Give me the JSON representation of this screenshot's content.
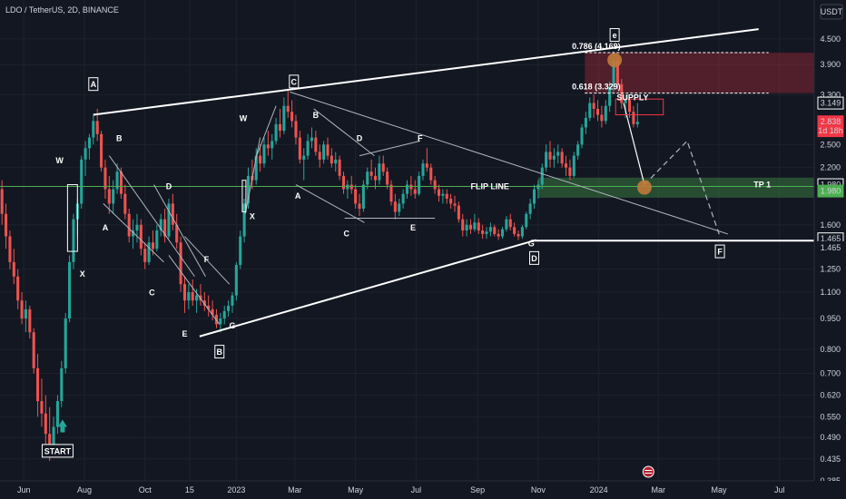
{
  "header": {
    "title": "LDO / TetherUS, 2D, BINANCE",
    "currency": "USDT"
  },
  "chart_data": {
    "type": "candlestick",
    "symbol": "LDO / TetherUS",
    "interval": "2D",
    "exchange": "BINANCE",
    "y_scale": "log",
    "ylim": [
      0.385,
      5.0
    ],
    "y_ticks": [
      4.5,
      3.9,
      3.3,
      2.5,
      2.2,
      1.6,
      1.25,
      1.1,
      0.95,
      0.8,
      0.7,
      0.62,
      0.55,
      0.49,
      0.435,
      0.385
    ],
    "y_tick_labels": [
      "4.500",
      "3.900",
      "3.300",
      "2.500",
      "2.200",
      "1.600",
      "1.250",
      "1.100",
      "0.950",
      "0.800",
      "0.700",
      "0.620",
      "0.550",
      "0.490",
      "0.435",
      "0.385"
    ],
    "x_tick_labels": [
      "Jun",
      "Aug",
      "Oct",
      "15",
      "2023",
      "Mar",
      "May",
      "Jul",
      "Sep",
      "Nov",
      "2024",
      "Mar",
      "May",
      "Jul"
    ],
    "x_tick_dates": [
      "2022-06-01",
      "2022-08-01",
      "2022-10-01",
      "2022-11-15",
      "2023-01-01",
      "2023-03-01",
      "2023-05-01",
      "2023-07-01",
      "2023-09-01",
      "2023-11-01",
      "2024-01-01",
      "2024-03-01",
      "2024-05-01",
      "2024-07-01"
    ],
    "date_range": [
      "2022-05-08",
      "2024-08-05"
    ],
    "price_labels": [
      {
        "text": "3.149",
        "price": 3.149,
        "style": "outline"
      },
      {
        "text": "2.838",
        "price": 2.838,
        "style": "red"
      },
      {
        "text": "1d 18h",
        "price": 2.7,
        "style": "red"
      },
      {
        "text": "1.980",
        "price": 2.0,
        "style": "outline"
      },
      {
        "text": "1.980",
        "price": 1.93,
        "style": "green"
      },
      {
        "text": "1.465",
        "price": 1.48,
        "style": "outline"
      },
      {
        "text": "1.465",
        "price": 1.41,
        "style": "plain"
      }
    ],
    "fib_levels": [
      {
        "label": "0.786 (4.169)",
        "price": 4.169
      },
      {
        "label": "0.618 (3.329)",
        "price": 3.329
      }
    ],
    "supply_zone": {
      "label": "SUPPLY",
      "top": 4.169,
      "bottom": 3.329
    },
    "flip_line": {
      "label": "FLIP LINE",
      "price": 1.98
    },
    "tp_zone": {
      "label": "TP 1",
      "top": 2.08,
      "bottom": 1.86
    },
    "target_line": {
      "price": 1.465
    },
    "wave_labels_boxed": [
      "A",
      "B",
      "C",
      "D",
      "e",
      "F",
      "START"
    ],
    "wave_labels_plain": [
      "W",
      "X",
      "B",
      "A",
      "C",
      "D",
      "E",
      "F",
      "G",
      "W",
      "X",
      "A",
      "B",
      "C",
      "D",
      "E",
      "F",
      "G"
    ],
    "candles": [
      [
        "2022-05-10",
        1.95,
        2.05,
        1.6,
        1.7
      ],
      [
        "2022-05-14",
        1.7,
        1.8,
        1.4,
        1.5
      ],
      [
        "2022-05-18",
        1.5,
        1.55,
        1.25,
        1.3
      ],
      [
        "2022-05-22",
        1.3,
        1.4,
        1.15,
        1.2
      ],
      [
        "2022-05-26",
        1.2,
        1.25,
        1.0,
        1.05
      ],
      [
        "2022-05-30",
        1.05,
        1.1,
        0.92,
        0.95
      ],
      [
        "2022-06-03",
        0.95,
        1.05,
        0.88,
        1.0
      ],
      [
        "2022-06-07",
        1.0,
        1.02,
        0.85,
        0.88
      ],
      [
        "2022-06-11",
        0.88,
        0.9,
        0.7,
        0.72
      ],
      [
        "2022-06-15",
        0.72,
        0.78,
        0.55,
        0.6
      ],
      [
        "2022-06-19",
        0.6,
        0.68,
        0.52,
        0.56
      ],
      [
        "2022-06-23",
        0.56,
        0.62,
        0.47,
        0.5
      ],
      [
        "2022-06-27",
        0.5,
        0.58,
        0.43,
        0.46
      ],
      [
        "2022-07-01",
        0.46,
        0.55,
        0.44,
        0.52
      ],
      [
        "2022-07-05",
        0.52,
        0.62,
        0.5,
        0.6
      ],
      [
        "2022-07-09",
        0.6,
        0.75,
        0.58,
        0.72
      ],
      [
        "2022-07-13",
        0.72,
        0.98,
        0.7,
        0.95
      ],
      [
        "2022-07-17",
        0.95,
        1.35,
        0.93,
        1.3
      ],
      [
        "2022-07-21",
        1.3,
        1.7,
        1.25,
        1.65
      ],
      [
        "2022-07-25",
        1.65,
        1.85,
        1.5,
        1.8
      ],
      [
        "2022-07-29",
        1.8,
        2.35,
        1.75,
        2.3
      ],
      [
        "2022-08-02",
        2.3,
        2.55,
        2.1,
        2.45
      ],
      [
        "2022-08-06",
        2.45,
        2.65,
        2.3,
        2.6
      ],
      [
        "2022-08-10",
        2.6,
        2.95,
        2.5,
        2.85
      ],
      [
        "2022-08-14",
        2.85,
        3.05,
        2.55,
        2.65
      ],
      [
        "2022-08-18",
        2.65,
        2.7,
        2.15,
        2.2
      ],
      [
        "2022-08-22",
        2.2,
        2.3,
        1.85,
        1.95
      ],
      [
        "2022-08-26",
        1.95,
        2.1,
        1.7,
        1.8
      ],
      [
        "2022-08-30",
        1.8,
        2.05,
        1.7,
        1.95
      ],
      [
        "2022-09-03",
        1.95,
        2.25,
        1.9,
        2.15
      ],
      [
        "2022-09-07",
        2.15,
        2.2,
        1.85,
        1.9
      ],
      [
        "2022-09-11",
        1.9,
        2.0,
        1.65,
        1.7
      ],
      [
        "2022-09-15",
        1.7,
        1.75,
        1.45,
        1.5
      ],
      [
        "2022-09-19",
        1.5,
        1.65,
        1.4,
        1.55
      ],
      [
        "2022-09-23",
        1.55,
        1.7,
        1.45,
        1.6
      ],
      [
        "2022-09-27",
        1.6,
        1.65,
        1.35,
        1.4
      ],
      [
        "2022-10-01",
        1.4,
        1.45,
        1.25,
        1.3
      ],
      [
        "2022-10-05",
        1.3,
        1.5,
        1.28,
        1.45
      ],
      [
        "2022-10-09",
        1.45,
        1.55,
        1.35,
        1.4
      ],
      [
        "2022-10-13",
        1.4,
        1.6,
        1.38,
        1.55
      ],
      [
        "2022-10-17",
        1.55,
        1.7,
        1.5,
        1.65
      ],
      [
        "2022-10-21",
        1.65,
        1.75,
        1.45,
        1.5
      ],
      [
        "2022-10-25",
        1.5,
        1.85,
        1.48,
        1.8
      ],
      [
        "2022-10-29",
        1.8,
        1.9,
        1.55,
        1.6
      ],
      [
        "2022-11-02",
        1.6,
        1.7,
        1.4,
        1.45
      ],
      [
        "2022-11-06",
        1.45,
        1.5,
        1.1,
        1.15
      ],
      [
        "2022-11-10",
        1.15,
        1.2,
        0.98,
        1.05
      ],
      [
        "2022-11-14",
        1.05,
        1.15,
        1.0,
        1.1
      ],
      [
        "2022-11-18",
        1.1,
        1.18,
        1.02,
        1.05
      ],
      [
        "2022-11-22",
        1.05,
        1.12,
        0.98,
        1.08
      ],
      [
        "2022-11-26",
        1.08,
        1.15,
        1.02,
        1.05
      ],
      [
        "2022-11-30",
        1.05,
        1.1,
        0.99,
        1.02
      ],
      [
        "2022-12-04",
        1.02,
        1.08,
        0.96,
        1.0
      ],
      [
        "2022-12-08",
        1.0,
        1.05,
        0.94,
        0.97
      ],
      [
        "2022-12-12",
        0.97,
        1.0,
        0.9,
        0.92
      ],
      [
        "2022-12-16",
        0.92,
        0.98,
        0.88,
        0.95
      ],
      [
        "2022-12-20",
        0.95,
        1.02,
        0.92,
        0.99
      ],
      [
        "2022-12-24",
        0.99,
        1.05,
        0.96,
        1.02
      ],
      [
        "2022-12-28",
        1.02,
        1.1,
        0.98,
        1.08
      ],
      [
        "2023-01-01",
        1.08,
        1.3,
        1.05,
        1.28
      ],
      [
        "2023-01-05",
        1.28,
        1.55,
        1.25,
        1.5
      ],
      [
        "2023-01-09",
        1.5,
        1.85,
        1.45,
        1.8
      ],
      [
        "2023-01-13",
        1.8,
        2.2,
        1.75,
        2.1
      ],
      [
        "2023-01-17",
        2.1,
        2.3,
        1.95,
        2.05
      ],
      [
        "2023-01-21",
        2.05,
        2.45,
        2.0,
        2.35
      ],
      [
        "2023-01-25",
        2.35,
        2.5,
        2.15,
        2.25
      ],
      [
        "2023-01-29",
        2.25,
        2.6,
        2.2,
        2.5
      ],
      [
        "2023-02-02",
        2.5,
        2.7,
        2.35,
        2.45
      ],
      [
        "2023-02-06",
        2.45,
        2.65,
        2.3,
        2.55
      ],
      [
        "2023-02-10",
        2.55,
        2.9,
        2.5,
        2.8
      ],
      [
        "2023-02-14",
        2.8,
        3.05,
        2.6,
        2.7
      ],
      [
        "2023-02-18",
        2.7,
        3.25,
        2.65,
        3.1
      ],
      [
        "2023-02-22",
        3.1,
        3.4,
        2.9,
        3.0
      ],
      [
        "2023-02-26",
        3.0,
        3.2,
        2.75,
        2.85
      ],
      [
        "2023-03-02",
        2.85,
        2.95,
        2.5,
        2.6
      ],
      [
        "2023-03-06",
        2.6,
        2.7,
        2.25,
        2.3
      ],
      [
        "2023-03-10",
        2.3,
        2.45,
        2.05,
        2.35
      ],
      [
        "2023-03-14",
        2.35,
        2.65,
        2.3,
        2.55
      ],
      [
        "2023-03-18",
        2.55,
        2.75,
        2.45,
        2.6
      ],
      [
        "2023-03-22",
        2.6,
        2.7,
        2.35,
        2.4
      ],
      [
        "2023-03-26",
        2.4,
        2.5,
        2.2,
        2.3
      ],
      [
        "2023-03-30",
        2.3,
        2.55,
        2.25,
        2.5
      ],
      [
        "2023-04-03",
        2.5,
        2.6,
        2.3,
        2.35
      ],
      [
        "2023-04-07",
        2.35,
        2.45,
        2.2,
        2.25
      ],
      [
        "2023-04-11",
        2.25,
        2.4,
        2.15,
        2.3
      ],
      [
        "2023-04-15",
        2.3,
        2.35,
        2.05,
        2.1
      ],
      [
        "2023-04-19",
        2.1,
        2.15,
        1.9,
        1.95
      ],
      [
        "2023-04-23",
        1.95,
        2.05,
        1.85,
        2.0
      ],
      [
        "2023-04-27",
        2.0,
        2.1,
        1.9,
        1.95
      ],
      [
        "2023-05-01",
        1.95,
        2.0,
        1.75,
        1.8
      ],
      [
        "2023-05-05",
        1.8,
        1.9,
        1.68,
        1.75
      ],
      [
        "2023-05-09",
        1.75,
        2.05,
        1.72,
        2.0
      ],
      [
        "2023-05-13",
        2.0,
        2.2,
        1.95,
        2.15
      ],
      [
        "2023-05-17",
        2.15,
        2.3,
        2.05,
        2.1
      ],
      [
        "2023-05-21",
        2.1,
        2.2,
        1.95,
        2.05
      ],
      [
        "2023-05-25",
        2.05,
        2.35,
        2.0,
        2.25
      ],
      [
        "2023-05-29",
        2.25,
        2.35,
        2.1,
        2.15
      ],
      [
        "2023-06-02",
        2.15,
        2.2,
        1.95,
        2.0
      ],
      [
        "2023-06-06",
        2.0,
        2.05,
        1.78,
        1.82
      ],
      [
        "2023-06-10",
        1.82,
        1.9,
        1.65,
        1.72
      ],
      [
        "2023-06-14",
        1.72,
        1.85,
        1.68,
        1.8
      ],
      [
        "2023-06-18",
        1.8,
        1.95,
        1.75,
        1.9
      ],
      [
        "2023-06-22",
        1.9,
        2.05,
        1.85,
        2.0
      ],
      [
        "2023-06-26",
        2.0,
        2.1,
        1.88,
        1.95
      ],
      [
        "2023-06-30",
        1.95,
        2.05,
        1.85,
        1.9
      ],
      [
        "2023-07-04",
        1.9,
        2.15,
        1.88,
        2.1
      ],
      [
        "2023-07-08",
        2.1,
        2.3,
        2.05,
        2.25
      ],
      [
        "2023-07-12",
        2.25,
        2.45,
        2.15,
        2.2
      ],
      [
        "2023-07-16",
        2.2,
        2.25,
        2.0,
        2.05
      ],
      [
        "2023-07-20",
        2.05,
        2.1,
        1.9,
        1.95
      ],
      [
        "2023-07-24",
        1.95,
        2.0,
        1.82,
        1.88
      ],
      [
        "2023-07-28",
        1.88,
        1.95,
        1.8,
        1.9
      ],
      [
        "2023-08-01",
        1.9,
        1.95,
        1.8,
        1.85
      ],
      [
        "2023-08-05",
        1.85,
        1.9,
        1.75,
        1.8
      ],
      [
        "2023-08-09",
        1.8,
        1.88,
        1.72,
        1.78
      ],
      [
        "2023-08-13",
        1.78,
        1.82,
        1.62,
        1.65
      ],
      [
        "2023-08-17",
        1.65,
        1.7,
        1.5,
        1.55
      ],
      [
        "2023-08-21",
        1.55,
        1.65,
        1.5,
        1.6
      ],
      [
        "2023-08-25",
        1.6,
        1.65,
        1.52,
        1.56
      ],
      [
        "2023-08-29",
        1.56,
        1.7,
        1.54,
        1.62
      ],
      [
        "2023-09-02",
        1.62,
        1.66,
        1.52,
        1.55
      ],
      [
        "2023-09-06",
        1.55,
        1.6,
        1.48,
        1.52
      ],
      [
        "2023-09-10",
        1.52,
        1.58,
        1.48,
        1.54
      ],
      [
        "2023-09-14",
        1.54,
        1.62,
        1.5,
        1.58
      ],
      [
        "2023-09-18",
        1.58,
        1.6,
        1.5,
        1.52
      ],
      [
        "2023-09-22",
        1.52,
        1.56,
        1.47,
        1.5
      ],
      [
        "2023-09-26",
        1.5,
        1.58,
        1.48,
        1.56
      ],
      [
        "2023-09-30",
        1.56,
        1.68,
        1.54,
        1.65
      ],
      [
        "2023-10-04",
        1.65,
        1.7,
        1.55,
        1.58
      ],
      [
        "2023-10-08",
        1.58,
        1.62,
        1.5,
        1.52
      ],
      [
        "2023-10-12",
        1.52,
        1.55,
        1.47,
        1.5
      ],
      [
        "2023-10-16",
        1.5,
        1.6,
        1.48,
        1.58
      ],
      [
        "2023-10-20",
        1.58,
        1.72,
        1.56,
        1.7
      ],
      [
        "2023-10-24",
        1.7,
        1.85,
        1.65,
        1.8
      ],
      [
        "2023-10-28",
        1.8,
        2.0,
        1.75,
        1.95
      ],
      [
        "2023-11-01",
        1.95,
        2.05,
        1.85,
        2.0
      ],
      [
        "2023-11-05",
        2.0,
        2.25,
        1.95,
        2.2
      ],
      [
        "2023-11-09",
        2.2,
        2.5,
        2.15,
        2.4
      ],
      [
        "2023-11-13",
        2.4,
        2.55,
        2.2,
        2.3
      ],
      [
        "2023-11-17",
        2.3,
        2.45,
        2.2,
        2.35
      ],
      [
        "2023-11-21",
        2.35,
        2.5,
        2.25,
        2.4
      ],
      [
        "2023-11-25",
        2.4,
        2.45,
        2.2,
        2.25
      ],
      [
        "2023-11-29",
        2.25,
        2.35,
        2.1,
        2.2
      ],
      [
        "2023-12-03",
        2.2,
        2.3,
        2.05,
        2.1
      ],
      [
        "2023-12-07",
        2.1,
        2.4,
        2.08,
        2.35
      ],
      [
        "2023-12-11",
        2.35,
        2.55,
        2.3,
        2.5
      ],
      [
        "2023-12-15",
        2.5,
        2.8,
        2.45,
        2.75
      ],
      [
        "2023-12-19",
        2.75,
        3.0,
        2.65,
        2.9
      ],
      [
        "2023-12-23",
        2.9,
        3.25,
        2.85,
        3.15
      ],
      [
        "2023-12-27",
        3.15,
        3.3,
        2.9,
        3.05
      ],
      [
        "2023-12-31",
        3.05,
        3.2,
        2.85,
        2.95
      ],
      [
        "2024-01-04",
        2.95,
        3.1,
        2.75,
        2.85
      ],
      [
        "2024-01-08",
        2.85,
        3.2,
        2.8,
        3.1
      ],
      [
        "2024-01-12",
        3.1,
        3.55,
        3.0,
        3.45
      ],
      [
        "2024-01-16",
        3.45,
        4.2,
        3.35,
        4.0
      ],
      [
        "2024-01-20",
        4.0,
        4.05,
        3.4,
        3.5
      ],
      [
        "2024-01-24",
        3.5,
        3.6,
        3.05,
        3.15
      ],
      [
        "2024-01-28",
        3.15,
        3.3,
        2.9,
        3.2
      ],
      [
        "2024-02-01",
        3.2,
        3.25,
        2.9,
        3.0
      ],
      [
        "2024-02-05",
        3.0,
        3.1,
        2.75,
        2.8
      ],
      [
        "2024-02-09",
        2.8,
        3.15,
        2.75,
        2.838
      ]
    ]
  }
}
